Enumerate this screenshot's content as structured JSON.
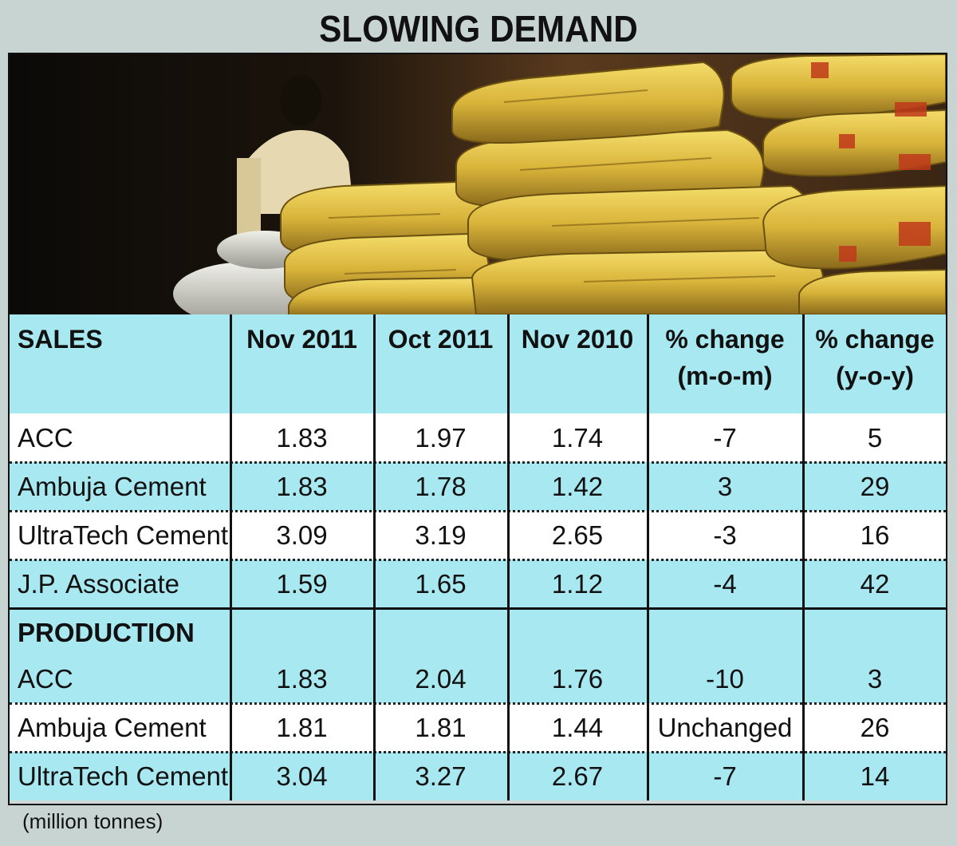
{
  "title": {
    "word1": "SLOWING",
    "word2": "DEMAND"
  },
  "photo": {
    "description_icon": "cement-bags-photo"
  },
  "colors": {
    "header_bg": "#a8e8f0",
    "row_odd": "#a8e8f0",
    "row_even": "#ffffff",
    "page_bg": "#c8d4d2"
  },
  "table": {
    "sales_header": "SALES",
    "col_headers": [
      {
        "line1": "Nov 2011",
        "line2": ""
      },
      {
        "line1": "Oct 2011",
        "line2": ""
      },
      {
        "line1": "Nov 2010",
        "line2": ""
      },
      {
        "line1": "% change",
        "line2": "(m-o-m)"
      },
      {
        "line1": "% change",
        "line2": "(y-o-y)"
      }
    ],
    "production_header": "PRODUCTION",
    "sales_rows": [
      {
        "name": "ACC",
        "values": [
          "1.83",
          "1.97",
          "1.74",
          "-7",
          "5"
        ]
      },
      {
        "name": "Ambuja Cement",
        "values": [
          "1.83",
          "1.78",
          "1.42",
          "3",
          "29"
        ]
      },
      {
        "name": "UltraTech Cement",
        "values": [
          "3.09",
          "3.19",
          "2.65",
          "-3",
          "16"
        ]
      },
      {
        "name": "J.P. Associate",
        "values": [
          "1.59",
          "1.65",
          "1.12",
          "-4",
          "42"
        ]
      }
    ],
    "production_rows": [
      {
        "name": "ACC",
        "values": [
          "1.83",
          "2.04",
          "1.76",
          "-10",
          "3"
        ]
      },
      {
        "name": "Ambuja Cement",
        "values": [
          "1.81",
          "1.81",
          "1.44",
          "Unchanged",
          "26"
        ]
      },
      {
        "name": "UltraTech Cement",
        "values": [
          "3.04",
          "3.27",
          "2.67",
          "-7",
          "14"
        ]
      }
    ]
  },
  "footer": {
    "units": "(million tonnes)"
  },
  "chart_data": {
    "type": "table",
    "title": "SLOWING DEMAND",
    "units": "(million tonnes)",
    "columns": [
      "Nov 2011",
      "Oct 2011",
      "Nov 2010",
      "% change (m-o-m)",
      "% change (y-o-y)"
    ],
    "sections": [
      {
        "name": "SALES",
        "rows": [
          {
            "company": "ACC",
            "values": [
              1.83,
              1.97,
              1.74,
              -7,
              5
            ]
          },
          {
            "company": "Ambuja Cement",
            "values": [
              1.83,
              1.78,
              1.42,
              3,
              29
            ]
          },
          {
            "company": "UltraTech Cement",
            "values": [
              3.09,
              3.19,
              2.65,
              -3,
              16
            ]
          },
          {
            "company": "J.P. Associate",
            "values": [
              1.59,
              1.65,
              1.12,
              -4,
              42
            ]
          }
        ]
      },
      {
        "name": "PRODUCTION",
        "rows": [
          {
            "company": "ACC",
            "values": [
              1.83,
              2.04,
              1.76,
              -10,
              3
            ]
          },
          {
            "company": "Ambuja Cement",
            "values": [
              1.81,
              1.81,
              1.44,
              "Unchanged",
              26
            ]
          },
          {
            "company": "UltraTech Cement",
            "values": [
              3.04,
              3.27,
              2.67,
              -7,
              14
            ]
          }
        ]
      }
    ]
  }
}
